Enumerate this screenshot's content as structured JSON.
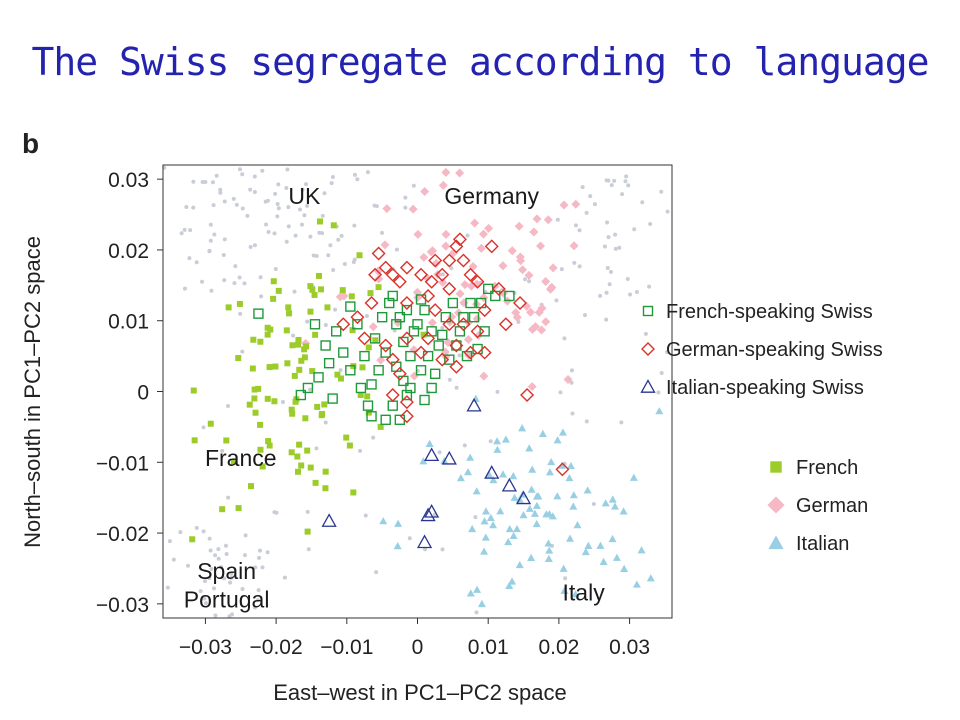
{
  "slide": {
    "title": "The Swiss segregate according to language",
    "panel_label": "b"
  },
  "colors": {
    "title": "#2323b0",
    "french_swiss": "#1e9a3a",
    "german_swiss": "#d8322a",
    "italian_swiss": "#2a3590",
    "french": "#9ccc2a",
    "german": "#f5b8c4",
    "italian": "#99cfe3",
    "background_points": "#c9cdd8"
  },
  "chart_data": {
    "type": "scatter",
    "xlabel": "East–west in PC1–PC2 space",
    "ylabel": "North–south in PC1–PC2 space",
    "xlim": [
      -0.036,
      0.036
    ],
    "ylim": [
      -0.032,
      0.032
    ],
    "x_ticks": [
      -0.03,
      -0.02,
      -0.01,
      0,
      0.01,
      0.02,
      0.03
    ],
    "x_tick_labels": [
      "−0.03",
      "−0.02",
      "−0.01",
      "0",
      "0.01",
      "0.02",
      "0.03"
    ],
    "y_ticks": [
      0.03,
      0.02,
      0.01,
      0,
      -0.01,
      -0.02,
      -0.03
    ],
    "y_tick_labels": [
      "0.03",
      "0.02",
      "0.01",
      "0",
      "−0.01",
      "−0.02",
      "−0.03"
    ],
    "grid": false,
    "legend_placement": "right",
    "region_labels": [
      {
        "text": "UK",
        "x": -0.016,
        "y": 0.0265
      },
      {
        "text": "Germany",
        "x": 0.0105,
        "y": 0.0265
      },
      {
        "text": "France",
        "x": -0.025,
        "y": -0.0105
      },
      {
        "text": "Spain",
        "x": -0.027,
        "y": -0.0265
      },
      {
        "text": "Portugal",
        "x": -0.027,
        "y": -0.0305
      },
      {
        "text": "Italy",
        "x": 0.0235,
        "y": -0.0295
      }
    ],
    "legend_swiss": [
      {
        "name": "French-speaking Swiss",
        "marker": "square-open",
        "color_key": "french_swiss"
      },
      {
        "name": "German-speaking Swiss",
        "marker": "diamond-open",
        "color_key": "german_swiss"
      },
      {
        "name": "Italian-speaking Swiss",
        "marker": "triangle-open",
        "color_key": "italian_swiss"
      }
    ],
    "legend_reference": [
      {
        "name": "French",
        "marker": "square-filled",
        "color_key": "french"
      },
      {
        "name": "German",
        "marker": "diamond-filled",
        "color_key": "german"
      },
      {
        "name": "Italian",
        "marker": "triangle-filled",
        "color_key": "italian"
      }
    ],
    "series": [
      {
        "name": "Italian-speaking Swiss",
        "marker": "triangle-open",
        "color_key": "italian_swiss",
        "points": [
          [
            0.008,
            -0.002
          ],
          [
            0.002,
            -0.009
          ],
          [
            0.0045,
            -0.0095
          ],
          [
            0.0105,
            -0.0115
          ],
          [
            0.013,
            -0.0133
          ],
          [
            0.015,
            -0.0151
          ],
          [
            -0.0125,
            -0.0183
          ],
          [
            0.002,
            -0.017
          ],
          [
            0.0015,
            -0.0175
          ],
          [
            0.001,
            -0.0213
          ]
        ]
      },
      {
        "name": "French-speaking Swiss",
        "marker": "square-open",
        "color_key": "french_swiss",
        "points": [
          [
            -0.0225,
            0.011
          ],
          [
            -0.0145,
            0.0095
          ],
          [
            -0.013,
            0.0065
          ],
          [
            -0.0115,
            0.0085
          ],
          [
            -0.0095,
            0.012
          ],
          [
            -0.0085,
            0.0095
          ],
          [
            -0.0105,
            0.0055
          ],
          [
            -0.0125,
            0.004
          ],
          [
            -0.014,
            0.002
          ],
          [
            -0.0155,
            0.0005
          ],
          [
            -0.0165,
            -0.0005
          ],
          [
            -0.012,
            -0.001
          ],
          [
            -0.0095,
            0.003
          ],
          [
            -0.008,
            0.0005
          ],
          [
            -0.007,
            -0.002
          ],
          [
            -0.0075,
            0.005
          ],
          [
            -0.006,
            0.0075
          ],
          [
            -0.005,
            0.0105
          ],
          [
            -0.004,
            0.0125
          ],
          [
            -0.003,
            0.0095
          ],
          [
            -0.002,
            0.007
          ],
          [
            -0.001,
            0.005
          ],
          [
            0.0,
            0.0095
          ],
          [
            0.001,
            0.0115
          ],
          [
            0.002,
            0.0085
          ],
          [
            0.003,
            0.0065
          ],
          [
            0.004,
            0.0105
          ],
          [
            0.005,
            0.0125
          ],
          [
            0.006,
            0.0085
          ],
          [
            0.007,
            0.005
          ],
          [
            0.008,
            0.0105
          ],
          [
            0.009,
            0.0125
          ],
          [
            0.01,
            0.0145
          ],
          [
            0.011,
            0.0135
          ],
          [
            0.013,
            0.0135
          ],
          [
            0.0095,
            0.0085
          ],
          [
            0.0085,
            0.006
          ],
          [
            -0.003,
            0.0035
          ],
          [
            -0.002,
            0.0015
          ],
          [
            -0.001,
            0.0005
          ],
          [
            0.0005,
            0.003
          ],
          [
            0.0015,
            0.005
          ],
          [
            -0.0045,
            0.0055
          ],
          [
            -0.0055,
            0.003
          ],
          [
            -0.0065,
            0.001
          ],
          [
            -0.0035,
            -0.002
          ],
          [
            -0.0015,
            -0.0005
          ],
          [
            0.001,
            -0.0012
          ],
          [
            0.002,
            0.0005
          ],
          [
            0.0025,
            0.0025
          ],
          [
            -0.0025,
            -0.004
          ],
          [
            -0.0045,
            -0.004
          ],
          [
            -0.0065,
            -0.0035
          ],
          [
            0.0035,
            0.008
          ],
          [
            0.0045,
            0.0045
          ],
          [
            0.0005,
            0.013
          ],
          [
            -0.0015,
            0.0115
          ],
          [
            -0.0035,
            0.0135
          ],
          [
            0.0065,
            0.0105
          ],
          [
            0.0075,
            0.0125
          ],
          [
            0.0055,
            0.0065
          ],
          [
            -0.0005,
            0.0085
          ],
          [
            -0.0025,
            0.0105
          ]
        ]
      },
      {
        "name": "German-speaking Swiss",
        "marker": "diamond-open",
        "color_key": "german_swiss",
        "points": [
          [
            0.006,
            0.0215
          ],
          [
            0.0055,
            0.0205
          ],
          [
            0.0065,
            0.0185
          ],
          [
            0.0105,
            0.0205
          ],
          [
            -0.0055,
            0.0195
          ],
          [
            -0.0045,
            0.0175
          ],
          [
            -0.006,
            0.0165
          ],
          [
            -0.0035,
            0.0165
          ],
          [
            -0.0025,
            0.0155
          ],
          [
            0.0005,
            0.0165
          ],
          [
            0.002,
            0.0155
          ],
          [
            0.0035,
            0.0165
          ],
          [
            0.0045,
            0.0145
          ],
          [
            0.0075,
            0.0165
          ],
          [
            0.0085,
            0.0155
          ],
          [
            0.0115,
            0.0145
          ],
          [
            0.0145,
            0.0125
          ],
          [
            0.0015,
            0.0135
          ],
          [
            -0.0015,
            0.0125
          ],
          [
            0.0025,
            0.0115
          ],
          [
            0.0045,
            0.0095
          ],
          [
            0.0065,
            0.0095
          ],
          [
            0.0085,
            0.0085
          ],
          [
            0.0055,
            0.0065
          ],
          [
            0.0075,
            0.0055
          ],
          [
            -0.0065,
            0.0125
          ],
          [
            -0.0085,
            0.0105
          ],
          [
            -0.0105,
            0.0095
          ],
          [
            -0.0075,
            0.0075
          ],
          [
            -0.0045,
            0.0065
          ],
          [
            0.0035,
            0.0045
          ],
          [
            0.0055,
            0.0035
          ],
          [
            0.0095,
            0.0055
          ],
          [
            0.0125,
            0.0095
          ],
          [
            0.0015,
            0.0075
          ],
          [
            -0.0015,
            0.0075
          ],
          [
            0.0005,
            0.0055
          ],
          [
            -0.0035,
            0.0045
          ],
          [
            -0.0025,
            0.0025
          ],
          [
            -0.0015,
            -0.0015
          ],
          [
            -0.0015,
            -0.0035
          ],
          [
            -0.0035,
            -0.0005
          ],
          [
            0.0155,
            -0.0005
          ],
          [
            0.0205,
            -0.011
          ],
          [
            0.0045,
            0.0185
          ],
          [
            0.0095,
            0.0115
          ],
          [
            0.0025,
            0.0185
          ],
          [
            -0.0015,
            0.0175
          ]
        ]
      }
    ],
    "background_clouds": [
      {
        "name": "German",
        "marker": "diamond-filled",
        "color_key": "german",
        "cx": 0.008,
        "cy": 0.014,
        "sx": 0.009,
        "sy": 0.008,
        "n": 90
      },
      {
        "name": "French",
        "marker": "square-filled",
        "color_key": "french",
        "cx": -0.016,
        "cy": 0.002,
        "sx": 0.007,
        "sy": 0.009,
        "n": 100
      },
      {
        "name": "Italian",
        "marker": "triangle-filled",
        "color_key": "italian",
        "cx": 0.016,
        "cy": -0.019,
        "sx": 0.009,
        "sy": 0.008,
        "n": 100
      }
    ]
  }
}
